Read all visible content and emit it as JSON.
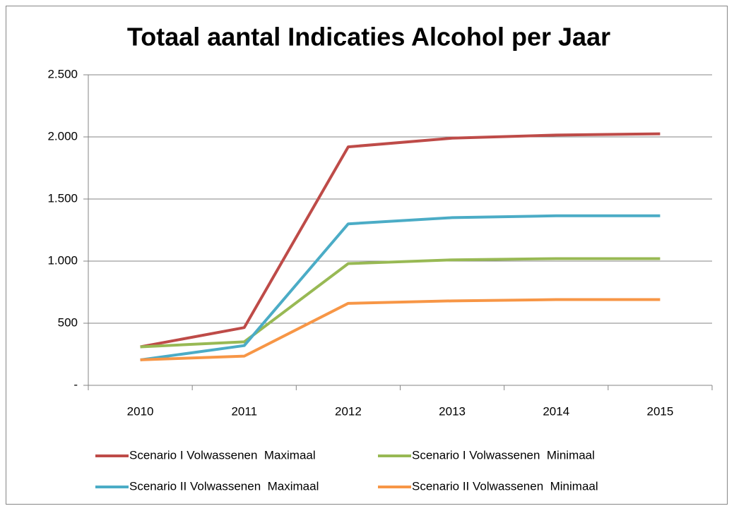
{
  "chart_data": {
    "type": "line",
    "title": "Totaal aantal Indicaties Alcohol per Jaar",
    "categories": [
      "2010",
      "2011",
      "2012",
      "2013",
      "2014",
      "2015"
    ],
    "series": [
      {
        "name": "Scenario I Volwassenen  Maximaal",
        "color": "#be4b48",
        "values": [
          310,
          465,
          1920,
          1990,
          2015,
          2025
        ]
      },
      {
        "name": "Scenario I Volwassenen  Minimaal",
        "color": "#98b954",
        "values": [
          310,
          350,
          980,
          1010,
          1020,
          1020
        ]
      },
      {
        "name": "Scenario II Volwassenen  Maximaal",
        "color": "#4bacc6",
        "values": [
          205,
          320,
          1300,
          1350,
          1365,
          1365
        ]
      },
      {
        "name": "Scenario II Volwassenen  Minimaal",
        "color": "#f79646",
        "values": [
          205,
          235,
          660,
          680,
          690,
          690
        ]
      }
    ],
    "ylim": [
      0,
      2500
    ],
    "yticks": [
      {
        "value": 0,
        "label": "-"
      },
      500,
      {
        "value": 1000,
        "label": "1.000"
      },
      {
        "value": 1500,
        "label": "1.500"
      },
      {
        "value": 2000,
        "label": "2.000"
      },
      {
        "value": 2500,
        "label": "2.500"
      }
    ],
    "grid": true
  }
}
